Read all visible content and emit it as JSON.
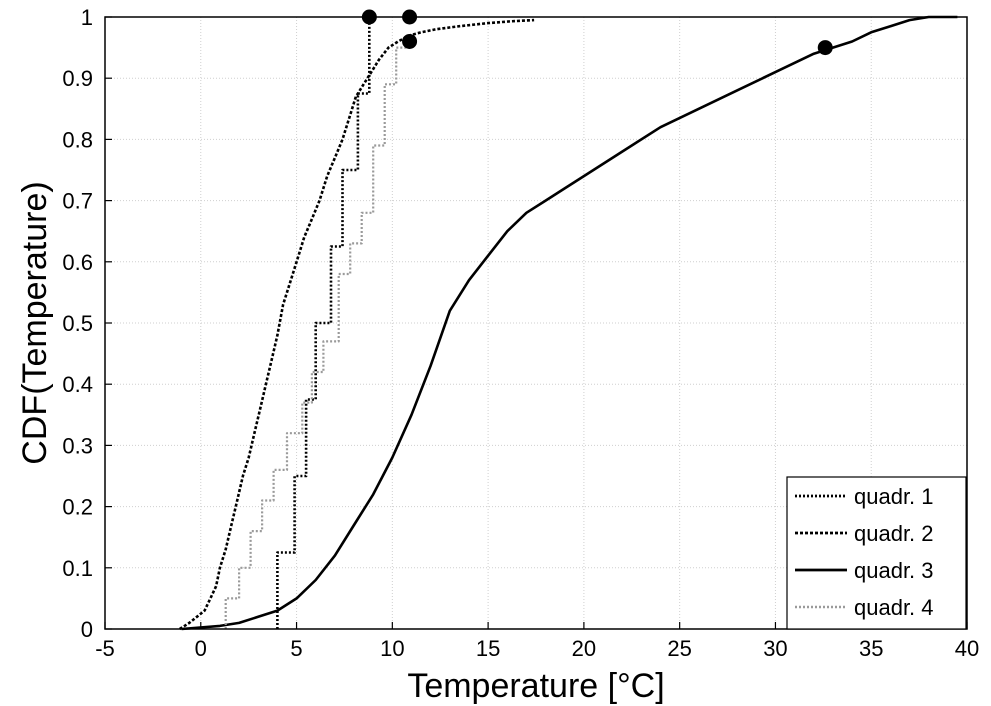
{
  "chart_data": {
    "type": "line",
    "subtype": "empirical-cdf-step",
    "title": "",
    "xlabel": "Temperature [°C]",
    "ylabel": "CDF(Temperature)",
    "xlim": [
      -5,
      40
    ],
    "ylim": [
      0,
      1
    ],
    "xticks": [
      -5,
      0,
      5,
      10,
      15,
      20,
      25,
      30,
      35,
      40
    ],
    "yticks": [
      0,
      0.1,
      0.2,
      0.3,
      0.4,
      0.5,
      0.6,
      0.7,
      0.8,
      0.9,
      1
    ],
    "xtick_labels": [
      "-5",
      "0",
      "5",
      "10",
      "15",
      "20",
      "25",
      "30",
      "35",
      "40"
    ],
    "ytick_labels": [
      "0",
      "0.1",
      "0.2",
      "0.3",
      "0.4",
      "0.5",
      "0.6",
      "0.7",
      "0.8",
      "0.9",
      "1"
    ],
    "grid": true,
    "legend_position": "bottom-right",
    "series": [
      {
        "name": "quadr. 1",
        "style": "dotted",
        "color": "#000000",
        "x": [
          4.0,
          4.0,
          4.9,
          4.9,
          5.5,
          5.5,
          6.0,
          6.0,
          6.8,
          6.8,
          7.4,
          7.4,
          8.2,
          8.2,
          8.8,
          8.8
        ],
        "y": [
          0.0,
          0.125,
          0.125,
          0.25,
          0.25,
          0.375,
          0.375,
          0.5,
          0.5,
          0.625,
          0.625,
          0.75,
          0.75,
          0.875,
          0.875,
          1.0
        ]
      },
      {
        "name": "quadr. 2",
        "style": "dashed",
        "color": "#000000",
        "x": [
          -1.1,
          -0.6,
          -0.2,
          0.2,
          0.5,
          0.8,
          1.0,
          1.3,
          1.6,
          1.9,
          2.2,
          2.5,
          2.8,
          3.1,
          3.4,
          3.7,
          4.0,
          4.3,
          4.6,
          5.0,
          5.4,
          5.8,
          6.2,
          6.6,
          7.0,
          7.4,
          7.8,
          8.1,
          8.5,
          8.9,
          9.3,
          9.8,
          10.3,
          10.9,
          11.5,
          12.3,
          13.5,
          15.0,
          16.2,
          17.4
        ],
        "y": [
          0.0,
          0.01,
          0.02,
          0.03,
          0.05,
          0.07,
          0.1,
          0.13,
          0.17,
          0.21,
          0.25,
          0.28,
          0.32,
          0.36,
          0.4,
          0.44,
          0.48,
          0.53,
          0.56,
          0.6,
          0.64,
          0.67,
          0.7,
          0.74,
          0.77,
          0.8,
          0.84,
          0.87,
          0.89,
          0.91,
          0.93,
          0.95,
          0.96,
          0.97,
          0.975,
          0.98,
          0.985,
          0.99,
          0.993,
          0.995
        ]
      },
      {
        "name": "quadr. 3",
        "style": "solid",
        "color": "#000000",
        "x": [
          -1.0,
          1.0,
          2.0,
          3.0,
          4.0,
          5.0,
          6.0,
          7.0,
          8.0,
          9.0,
          10.0,
          11.0,
          12.0,
          13.0,
          14.0,
          15.0,
          16.0,
          17.0,
          18.0,
          19.0,
          20.0,
          22.0,
          24.0,
          26.0,
          28.0,
          30.0,
          32.0,
          33.0,
          34.0,
          35.0,
          36.0,
          37.0,
          38.0,
          39.5
        ],
        "y": [
          0.0,
          0.005,
          0.01,
          0.02,
          0.03,
          0.05,
          0.08,
          0.12,
          0.17,
          0.22,
          0.28,
          0.35,
          0.43,
          0.52,
          0.57,
          0.61,
          0.65,
          0.68,
          0.7,
          0.72,
          0.74,
          0.78,
          0.82,
          0.85,
          0.88,
          0.91,
          0.94,
          0.95,
          0.96,
          0.975,
          0.985,
          0.995,
          1.0,
          1.0
        ]
      },
      {
        "name": "quadr. 4",
        "style": "dotted-gray",
        "color": "#9a9a9a",
        "x": [
          1.3,
          1.3,
          2.0,
          2.0,
          2.6,
          2.6,
          3.2,
          3.2,
          3.8,
          3.8,
          4.5,
          4.5,
          5.3,
          5.3,
          5.8,
          5.8,
          6.4,
          6.4,
          7.2,
          7.2,
          7.8,
          7.8,
          8.4,
          8.4,
          9.0,
          9.0,
          9.6,
          9.6,
          10.2,
          10.2,
          10.9,
          10.9
        ],
        "y": [
          0.0,
          0.05,
          0.05,
          0.1,
          0.1,
          0.16,
          0.16,
          0.21,
          0.21,
          0.26,
          0.26,
          0.32,
          0.32,
          0.37,
          0.37,
          0.42,
          0.42,
          0.47,
          0.47,
          0.58,
          0.58,
          0.63,
          0.63,
          0.68,
          0.68,
          0.79,
          0.79,
          0.89,
          0.89,
          0.95,
          0.95,
          0.96
        ]
      }
    ],
    "markers": [
      {
        "x": 8.8,
        "y": 1.0
      },
      {
        "x": 10.9,
        "y": 1.0
      },
      {
        "x": 10.9,
        "y": 0.96
      },
      {
        "x": 32.6,
        "y": 0.95
      }
    ]
  }
}
